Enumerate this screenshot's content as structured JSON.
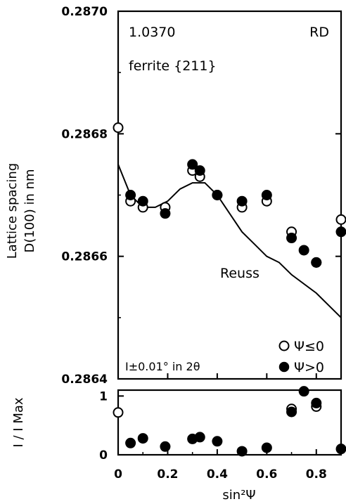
{
  "chart_data": [
    {
      "type": "scatter",
      "title": "",
      "ylabel_line1": "Lattice spacing",
      "ylabel_line2": "D(100)  in nm",
      "xlim": [
        0,
        0.9
      ],
      "ylim": [
        0.2864,
        0.287
      ],
      "y_ticks": [
        "0.2864",
        "0.2866",
        "0.2868",
        "0.2870"
      ],
      "grid": false,
      "annotations": {
        "material": "1.0370",
        "direction": "RD",
        "phase": "ferrite  {211}",
        "curve_label": "Reuss",
        "resolution": "Ι±0.01° in 2θ"
      },
      "legend": {
        "position": "bottom-right",
        "entries": [
          {
            "marker": "open-circle",
            "label": "Ψ≤0"
          },
          {
            "marker": "filled-circle",
            "label": "Ψ>0"
          }
        ]
      },
      "series": [
        {
          "name": "Ψ≤0",
          "marker": "open",
          "points": [
            [
              0.0,
              0.28681
            ],
            [
              0.05,
              0.28669
            ],
            [
              0.1,
              0.28668
            ],
            [
              0.19,
              0.28668
            ],
            [
              0.3,
              0.28674
            ],
            [
              0.33,
              0.28673
            ],
            [
              0.4,
              0.2867
            ],
            [
              0.5,
              0.28668
            ],
            [
              0.6,
              0.28669
            ],
            [
              0.7,
              0.28664
            ],
            [
              0.8,
              0.28659
            ],
            [
              0.9,
              0.28666
            ]
          ]
        },
        {
          "name": "Ψ>0",
          "marker": "filled",
          "points": [
            [
              0.05,
              0.2867
            ],
            [
              0.1,
              0.28669
            ],
            [
              0.19,
              0.28667
            ],
            [
              0.3,
              0.28675
            ],
            [
              0.33,
              0.28674
            ],
            [
              0.4,
              0.2867
            ],
            [
              0.5,
              0.28669
            ],
            [
              0.6,
              0.2867
            ],
            [
              0.7,
              0.28663
            ],
            [
              0.75,
              0.28661
            ],
            [
              0.8,
              0.28659
            ],
            [
              0.9,
              0.28664
            ]
          ]
        },
        {
          "name": "Reuss",
          "marker": "line",
          "points": [
            [
              0.0,
              0.28675
            ],
            [
              0.05,
              0.2867
            ],
            [
              0.1,
              0.28668
            ],
            [
              0.15,
              0.28668
            ],
            [
              0.2,
              0.28669
            ],
            [
              0.25,
              0.28671
            ],
            [
              0.3,
              0.28672
            ],
            [
              0.35,
              0.28672
            ],
            [
              0.4,
              0.2867
            ],
            [
              0.45,
              0.28667
            ],
            [
              0.5,
              0.28664
            ],
            [
              0.55,
              0.28662
            ],
            [
              0.6,
              0.2866
            ],
            [
              0.65,
              0.28659
            ],
            [
              0.7,
              0.28657
            ],
            [
              0.8,
              0.28654
            ],
            [
              0.9,
              0.2865
            ]
          ]
        }
      ]
    },
    {
      "type": "scatter",
      "title": "",
      "ylabel": "I / I Max",
      "xlabel": "sin²Ψ",
      "xlim": [
        0,
        0.9
      ],
      "ylim": [
        0,
        1.1
      ],
      "x_ticks": [
        "0",
        "0.2",
        "0.4",
        "0.6",
        "0.8"
      ],
      "y_ticks": [
        "0",
        "1"
      ],
      "grid": false,
      "series": [
        {
          "name": "Ψ≤0",
          "marker": "open",
          "points": [
            [
              0.0,
              0.72
            ],
            [
              0.7,
              0.78
            ],
            [
              0.8,
              0.82
            ]
          ]
        },
        {
          "name": "Ψ>0",
          "marker": "filled",
          "points": [
            [
              0.05,
              0.2
            ],
            [
              0.1,
              0.28
            ],
            [
              0.19,
              0.14
            ],
            [
              0.3,
              0.27
            ],
            [
              0.33,
              0.3
            ],
            [
              0.4,
              0.23
            ],
            [
              0.5,
              0.06
            ],
            [
              0.6,
              0.12
            ],
            [
              0.7,
              0.73
            ],
            [
              0.75,
              1.08
            ],
            [
              0.8,
              0.88
            ],
            [
              0.9,
              0.1
            ]
          ]
        }
      ]
    }
  ]
}
